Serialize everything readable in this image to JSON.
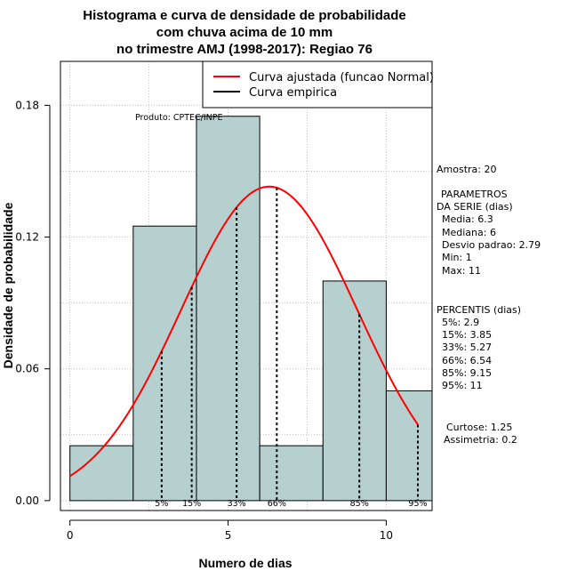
{
  "chart_data": {
    "type": "bar",
    "title_lines": [
      "Histograma e curva de densidade de probabilidade",
      "com chuva acima de 10 mm",
      "no trimestre AMJ (1998-2017): Regiao 76"
    ],
    "xlabel": "Numero de dias",
    "ylabel": "Densidade de probabilidade",
    "xlim": [
      -0.3,
      11.45
    ],
    "ylim": [
      -0.0045,
      0.2
    ],
    "x_ticks": [
      0,
      5,
      10
    ],
    "y_ticks": [
      0.0,
      0.06,
      0.12,
      0.18
    ],
    "x_tick_labels": [
      "0",
      "5",
      "10"
    ],
    "y_tick_labels": [
      "0.00",
      "0.06",
      "0.12",
      "0.18"
    ],
    "grid": true,
    "bins": [
      {
        "from": 0,
        "to": 2,
        "density": 0.025
      },
      {
        "from": 2,
        "to": 4,
        "density": 0.125
      },
      {
        "from": 4,
        "to": 6,
        "density": 0.175
      },
      {
        "from": 6,
        "to": 8,
        "density": 0.025
      },
      {
        "from": 8,
        "to": 10,
        "density": 0.1
      },
      {
        "from": 10,
        "to": 12,
        "density": 0.05
      }
    ],
    "bar_color": "#b6cfcf",
    "normal_curve": {
      "mean": 6.3,
      "sd": 2.79,
      "x_range": [
        0,
        11
      ],
      "color": "#ff0000"
    },
    "percentile_lines": [
      {
        "label": "5%",
        "x": 2.9
      },
      {
        "label": "15%",
        "x": 3.85
      },
      {
        "label": "33%",
        "x": 5.27
      },
      {
        "label": "66%",
        "x": 6.54
      },
      {
        "label": "85%",
        "x": 9.15
      },
      {
        "label": "95%",
        "x": 11
      }
    ],
    "legend": {
      "position": "top-right",
      "entries": [
        {
          "label": "Curva ajustada (funcao Normal)",
          "color": "#ff0000"
        },
        {
          "label": "Curva empirica",
          "color": "#000000"
        }
      ]
    },
    "credit": "Produto: CPTEC/INPE"
  },
  "stats": {
    "amostra": "Amostra: 20",
    "parametros_lines": [
      "PARAMETROS",
      "DA SERIE (dias)"
    ],
    "parametros_values": [
      "Media: 6.3",
      "Mediana: 6",
      "Desvio padrao: 2.79",
      "Min: 1",
      "Max: 11"
    ],
    "percentis_title": "PERCENTIS (dias)",
    "percentis_values": [
      "5%: 2.9",
      "15%: 3.85",
      "33%: 5.27",
      "66%: 6.54",
      "85%: 9.15",
      "95%: 11"
    ],
    "curtose": "Curtose: 1.25",
    "assimetria": "Assimetria: 0.2"
  }
}
